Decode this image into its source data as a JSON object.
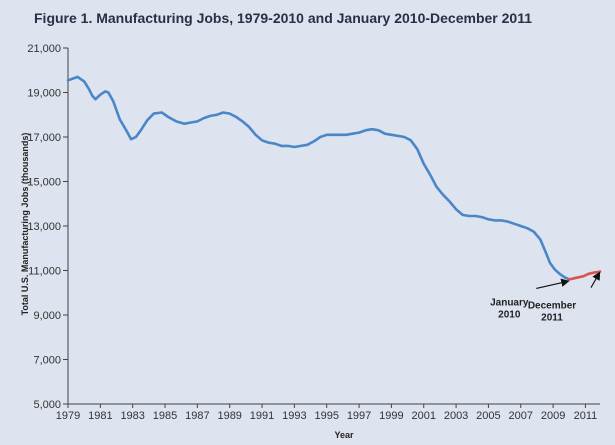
{
  "chart_data": {
    "type": "line",
    "title": "Figure 1. Manufacturing Jobs, 1979-2010 and January 2010-December 2011",
    "xlabel": "Year",
    "ylabel": "Total U.S. Manufacturing Jobs (thousands)",
    "xlim": [
      1979,
      2011.9
    ],
    "ylim": [
      5000,
      21000
    ],
    "y_ticks": [
      "5,000",
      "7,000",
      "9,000",
      "11,000",
      "13,000",
      "15,000",
      "17,000",
      "19,000",
      "21,000"
    ],
    "x_ticks": [
      "1979",
      "1981",
      "1983",
      "1985",
      "1987",
      "1989",
      "1991",
      "1993",
      "1995",
      "1997",
      "1999",
      "2001",
      "2003",
      "2005",
      "2007",
      "2009",
      "2011"
    ],
    "grid": false,
    "series": [
      {
        "color": "#4a86c8",
        "x": [
          1979.0,
          1979.4,
          1979.6,
          1980.0,
          1980.3,
          1980.5,
          1980.7,
          1981.0,
          1981.3,
          1981.5,
          1981.8,
          1982.2,
          1982.6,
          1982.9,
          1983.2,
          1983.5,
          1983.9,
          1984.3,
          1984.8,
          1985.2,
          1985.7,
          1986.2,
          1986.6,
          1987.0,
          1987.4,
          1987.8,
          1988.2,
          1988.6,
          1989.0,
          1989.4,
          1989.8,
          1990.2,
          1990.6,
          1991.0,
          1991.4,
          1991.8,
          1992.2,
          1992.6,
          1993.0,
          1993.4,
          1993.8,
          1994.2,
          1994.6,
          1995.0,
          1995.4,
          1995.8,
          1996.2,
          1996.6,
          1997.0,
          1997.4,
          1997.8,
          1998.2,
          1998.6,
          1999.0,
          1999.4,
          1999.8,
          2000.2,
          2000.6,
          2001.0,
          2001.4,
          2001.8,
          2002.2,
          2002.6,
          2003.0,
          2003.4,
          2003.8,
          2004.2,
          2004.6,
          2005.0,
          2005.4,
          2005.8,
          2006.2,
          2006.6,
          2007.0,
          2007.4,
          2007.8,
          2008.2,
          2008.5,
          2008.8,
          2009.1,
          2009.4,
          2009.7,
          2010.0
        ],
        "values": [
          19550,
          19650,
          19700,
          19500,
          19150,
          18850,
          18700,
          18900,
          19050,
          19000,
          18600,
          17800,
          17300,
          16900,
          17000,
          17300,
          17750,
          18050,
          18100,
          17900,
          17700,
          17600,
          17650,
          17700,
          17850,
          17950,
          18000,
          18100,
          18050,
          17900,
          17700,
          17450,
          17100,
          16850,
          16750,
          16700,
          16600,
          16600,
          16550,
          16600,
          16650,
          16800,
          17000,
          17100,
          17100,
          17100,
          17100,
          17150,
          17200,
          17300,
          17350,
          17300,
          17150,
          17100,
          17050,
          17000,
          16850,
          16450,
          15800,
          15300,
          14750,
          14400,
          14100,
          13750,
          13500,
          13450,
          13450,
          13400,
          13300,
          13250,
          13250,
          13200,
          13100,
          13000,
          12900,
          12750,
          12400,
          11900,
          11350,
          11050,
          10850,
          10700,
          10600
        ]
      },
      {
        "color": "#d9534f",
        "x": [
          2010.0,
          2010.3,
          2010.6,
          2010.9,
          2011.2,
          2011.5,
          2011.9
        ],
        "values": [
          10600,
          10650,
          10700,
          10750,
          10850,
          10900,
          10950
        ]
      }
    ],
    "annotations": [
      {
        "lines": [
          "January",
          "2010"
        ],
        "x": 2010.0,
        "y": 10600
      },
      {
        "lines": [
          "December",
          "2011"
        ],
        "x": 2011.9,
        "y": 10950
      }
    ]
  }
}
